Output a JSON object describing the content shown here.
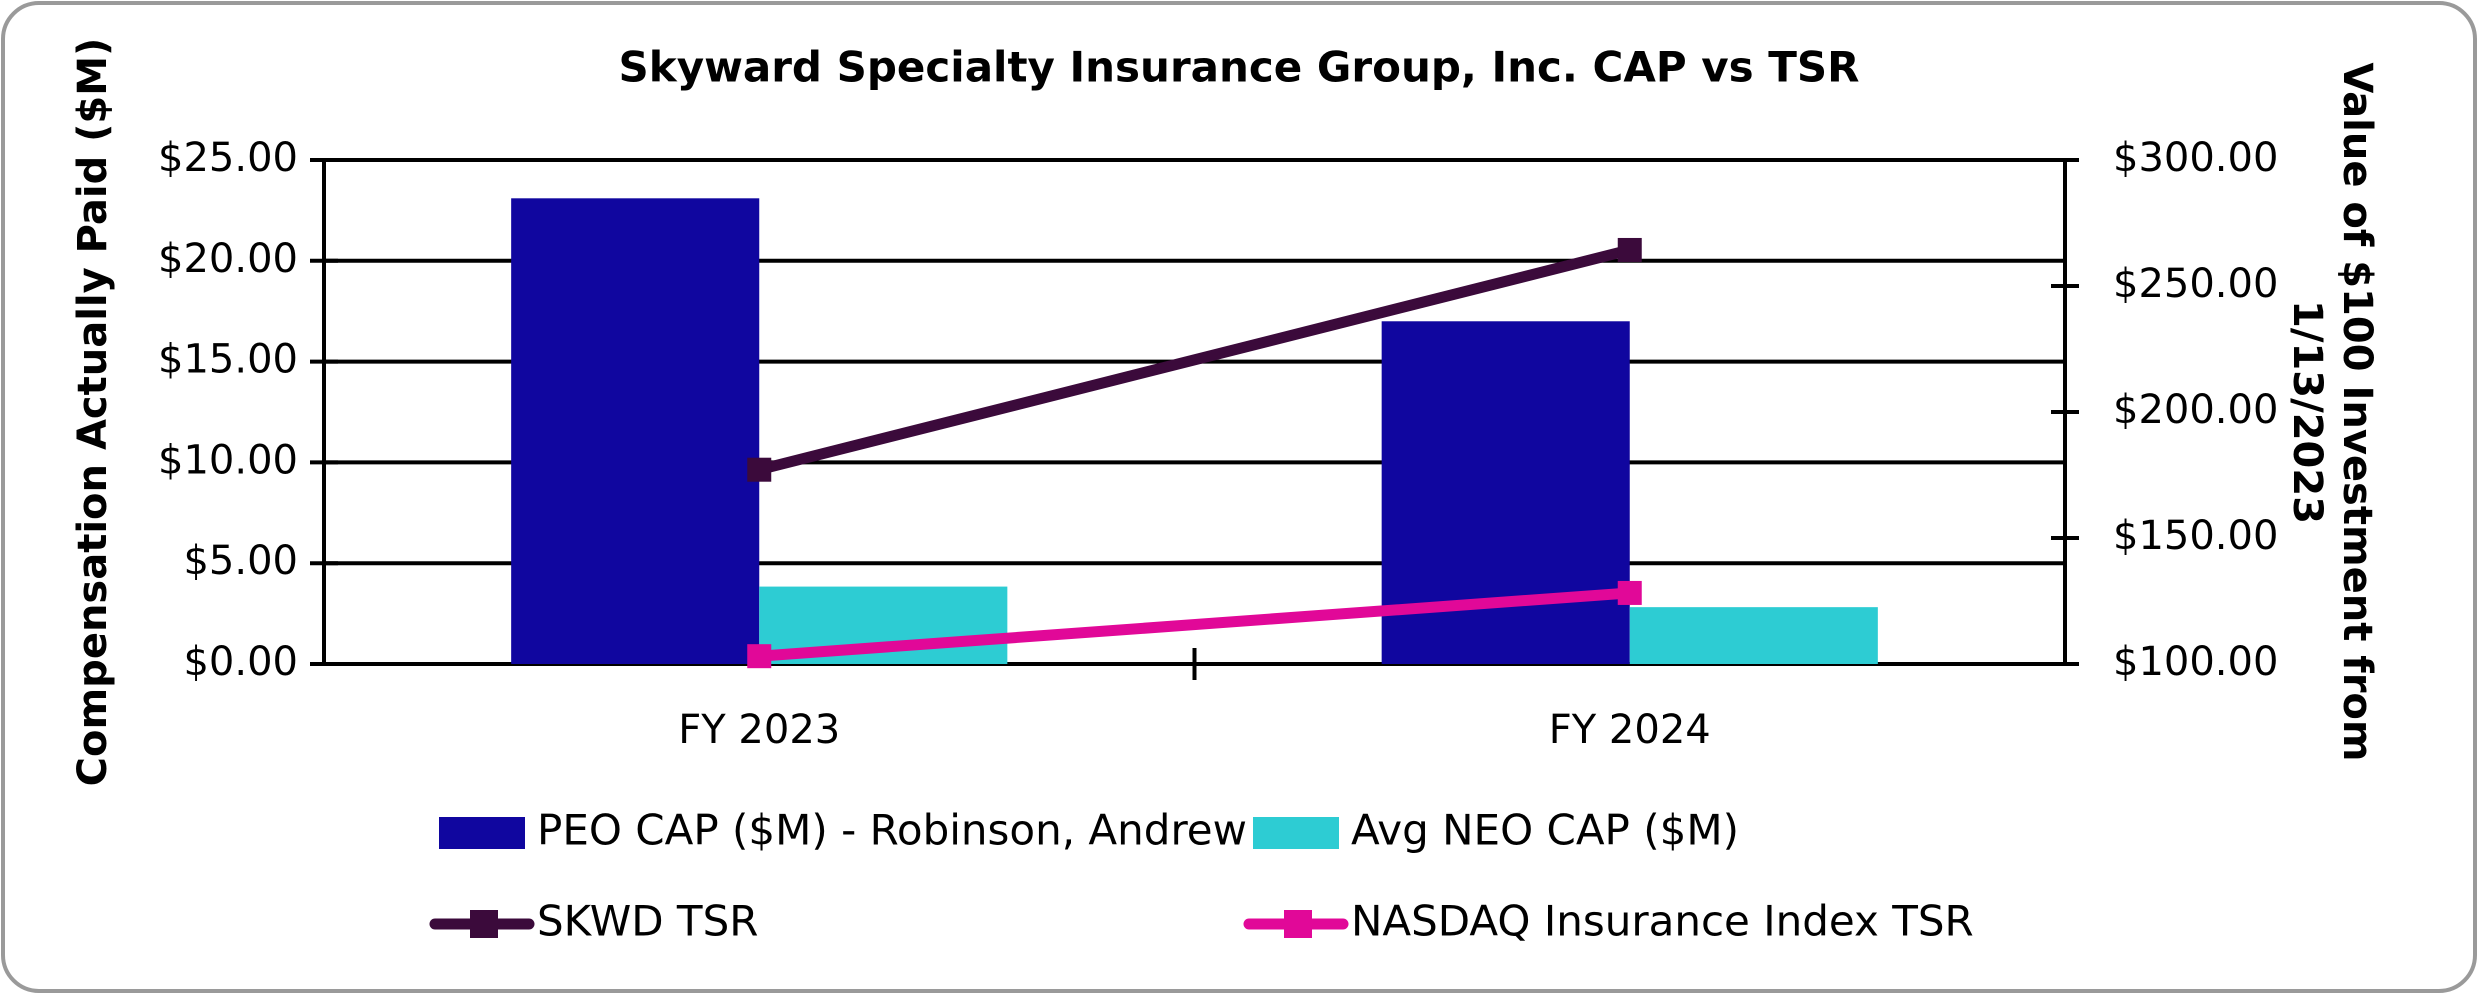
{
  "chart_data": {
    "type": "bar",
    "title": "Skyward Specialty Insurance Group, Inc. CAP vs TSR",
    "ylabel": "Compensation Actually Paid ($M)",
    "y2label": [
      "Value of $100 Investment from",
      "1/13/2023"
    ],
    "categories": [
      "FY 2023",
      "FY 2024"
    ],
    "series": [
      {
        "name": "PEO CAP ($M) - Robinson, Andrew",
        "type": "bar",
        "color": "#10069f",
        "values": [
          23.1,
          17.0
        ]
      },
      {
        "name": "Avg NEO CAP ($M)",
        "type": "bar",
        "color": "#2dccd3",
        "values": [
          3.84,
          2.82
        ]
      },
      {
        "name": "SKWD TSR",
        "type": "line",
        "axis": "y2",
        "color": "#3b0a3b",
        "values": [
          177.1,
          264.3
        ]
      },
      {
        "name": "NASDAQ Insurance Index TSR",
        "type": "line",
        "axis": "y2",
        "color": "#e10898",
        "values": [
          103.1,
          128.2
        ]
      }
    ],
    "ylim": [
      0,
      25
    ],
    "yticks": [
      {
        "value": 0,
        "label": "$0.00"
      },
      {
        "value": 5,
        "label": "$5.00"
      },
      {
        "value": 10,
        "label": "$10.00"
      },
      {
        "value": 15,
        "label": "$15.00"
      },
      {
        "value": 20,
        "label": "$20.00"
      },
      {
        "value": 25,
        "label": "$25.00"
      }
    ],
    "y2lim": [
      100,
      300
    ],
    "y2ticks": [
      {
        "value": 100,
        "label": "$100.00"
      },
      {
        "value": 150,
        "label": "$150.00"
      },
      {
        "value": 200,
        "label": "$200.00"
      },
      {
        "value": 250,
        "label": "$250.00"
      },
      {
        "value": 300,
        "label": "$300.00"
      }
    ],
    "grid": true
  }
}
